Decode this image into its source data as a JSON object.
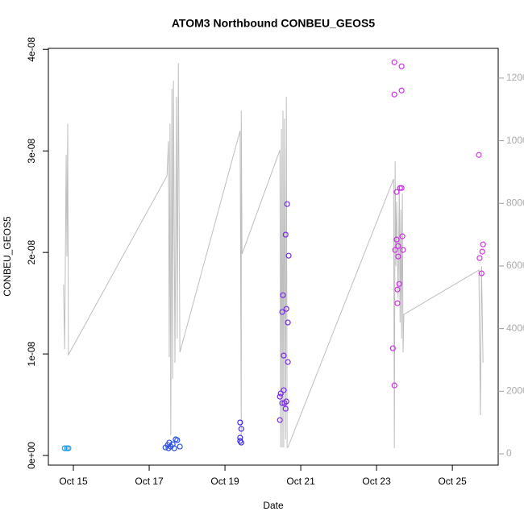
{
  "chart_data": {
    "type": "scatter",
    "title": "ATOM3 Northbound CONBEU_GEOS5",
    "x_label": "Date",
    "y_label": "CONBEU_GEOS5",
    "xlim": [
      14.34,
      26.21
    ],
    "xticks": [
      {
        "value": 15,
        "label": "Oct 15"
      },
      {
        "value": 17,
        "label": "Oct 17"
      },
      {
        "value": 19,
        "label": "Oct 19"
      },
      {
        "value": 21,
        "label": "Oct 21"
      },
      {
        "value": 23,
        "label": "Oct 23"
      },
      {
        "value": 25,
        "label": "Oct 25"
      }
    ],
    "ylim": [
      -9.5e-10,
      4.01e-08
    ],
    "yticks": [
      {
        "value": 0,
        "label": "0e+00"
      },
      {
        "value": 1e-08,
        "label": "1e-08"
      },
      {
        "value": 2e-08,
        "label": "2e-08"
      },
      {
        "value": 3e-08,
        "label": "3e-08"
      },
      {
        "value": 4e-08,
        "label": "4e-08"
      }
    ],
    "y2lim": [
      -360,
      12950
    ],
    "y2ticks": [
      0,
      2000,
      4000,
      6000,
      8000,
      10000,
      12000
    ],
    "series": [
      {
        "color": "#1e9be6",
        "x": [
          14.77,
          14.83,
          14.87
        ],
        "values": [
          7.1e-10,
          7.1e-10,
          7.1e-10
        ]
      },
      {
        "color": "#2b4fe6",
        "x": [
          17.43,
          17.49,
          17.53,
          17.57,
          17.62,
          17.66,
          17.7,
          17.74,
          17.81,
          17.51
        ],
        "values": [
          7.9e-10,
          1.03e-09,
          1.27e-09,
          8.7e-10,
          1.11e-09,
          7.1e-10,
          1.59e-09,
          1.51e-09,
          8.7e-10,
          7.1e-10
        ]
      },
      {
        "color": "#3b2ae6",
        "x": [
          19.4,
          19.43,
          19.4,
          19.4,
          19.43
        ],
        "values": [
          3.25e-09,
          2.62e-09,
          1.75e-09,
          1.43e-09,
          1.27e-09
        ]
      },
      {
        "color": "#7a2ae6",
        "x": [
          20.45,
          20.45,
          20.47,
          20.51,
          20.51,
          20.53,
          20.55,
          20.55,
          20.57,
          20.6,
          20.6,
          20.62,
          20.62,
          20.64,
          20.66,
          20.66,
          20.68
        ],
        "values": [
          3.49e-09,
          5.79e-09,
          6.11e-09,
          5.16e-09,
          1.413e-08,
          1.579e-08,
          9.84e-09,
          6.43e-09,
          5.16e-09,
          4.6e-09,
          2.175e-08,
          5.32e-09,
          1.444e-08,
          2.476e-08,
          1.31e-08,
          9.21e-09,
          1.968e-08
        ]
      },
      {
        "color": "#cc2ee6",
        "x": [
          23.47,
          23.47,
          23.66,
          23.66,
          23.43,
          23.47,
          23.49,
          23.53,
          23.53,
          23.55,
          23.55,
          23.57,
          23.57,
          23.6,
          23.62,
          23.66,
          23.68,
          23.7
        ],
        "values": [
          3.873e-08,
          3.556e-08,
          3.833e-08,
          3.595e-08,
          1.056e-08,
          6.9e-09,
          2.024e-08,
          2.595e-08,
          2.127e-08,
          1.635e-08,
          1.5e-08,
          2.063e-08,
          1.96e-08,
          1.69e-08,
          2.635e-08,
          2.635e-08,
          2.159e-08,
          2.024e-08
        ]
      },
      {
        "color": "#d633e6",
        "x": [
          25.7,
          25.72,
          25.77,
          25.79,
          25.81
        ],
        "values": [
          2.96e-08,
          1.944e-08,
          1.794e-08,
          2.008e-08,
          2.079e-08
        ]
      },
      {
        "type": "line",
        "axis": "y2",
        "color": "#bebebe",
        "x": [
          14.74,
          14.77,
          14.81,
          14.83,
          14.85,
          14.87,
          17.47,
          17.51,
          17.53,
          17.55,
          17.57,
          17.6,
          17.62,
          17.64,
          17.68,
          17.72,
          17.74,
          17.77,
          17.81,
          19.4,
          19.43,
          19.43,
          19.45,
          20.45,
          20.47,
          20.49,
          20.51,
          20.53,
          20.55,
          20.57,
          20.6,
          20.62,
          20.64,
          20.66,
          23.45,
          23.47,
          23.49,
          23.51,
          23.53,
          23.57,
          23.6,
          23.62,
          23.64,
          23.66,
          23.68,
          23.7,
          23.72,
          25.7,
          25.74,
          25.77,
          25.81
        ],
        "values": [
          5405,
          3346,
          9550,
          6306,
          10553,
          3166,
          8880,
          9987,
          3089,
          10553,
          592,
          11660,
          2394,
          11918,
          2909,
          11403,
          3681,
          12484,
          3243,
          10322,
          592,
          10965,
          6384,
          9704,
          206,
          10373,
          206,
          10965,
          206,
          10708,
          463,
          11403,
          206,
          206,
          8777,
          180,
          9344,
          5997,
          8057,
          4968,
          8571,
          4196,
          7800,
          3681,
          8314,
          3243,
          4453,
          5869,
          1236,
          5997,
          2909
        ]
      }
    ]
  }
}
